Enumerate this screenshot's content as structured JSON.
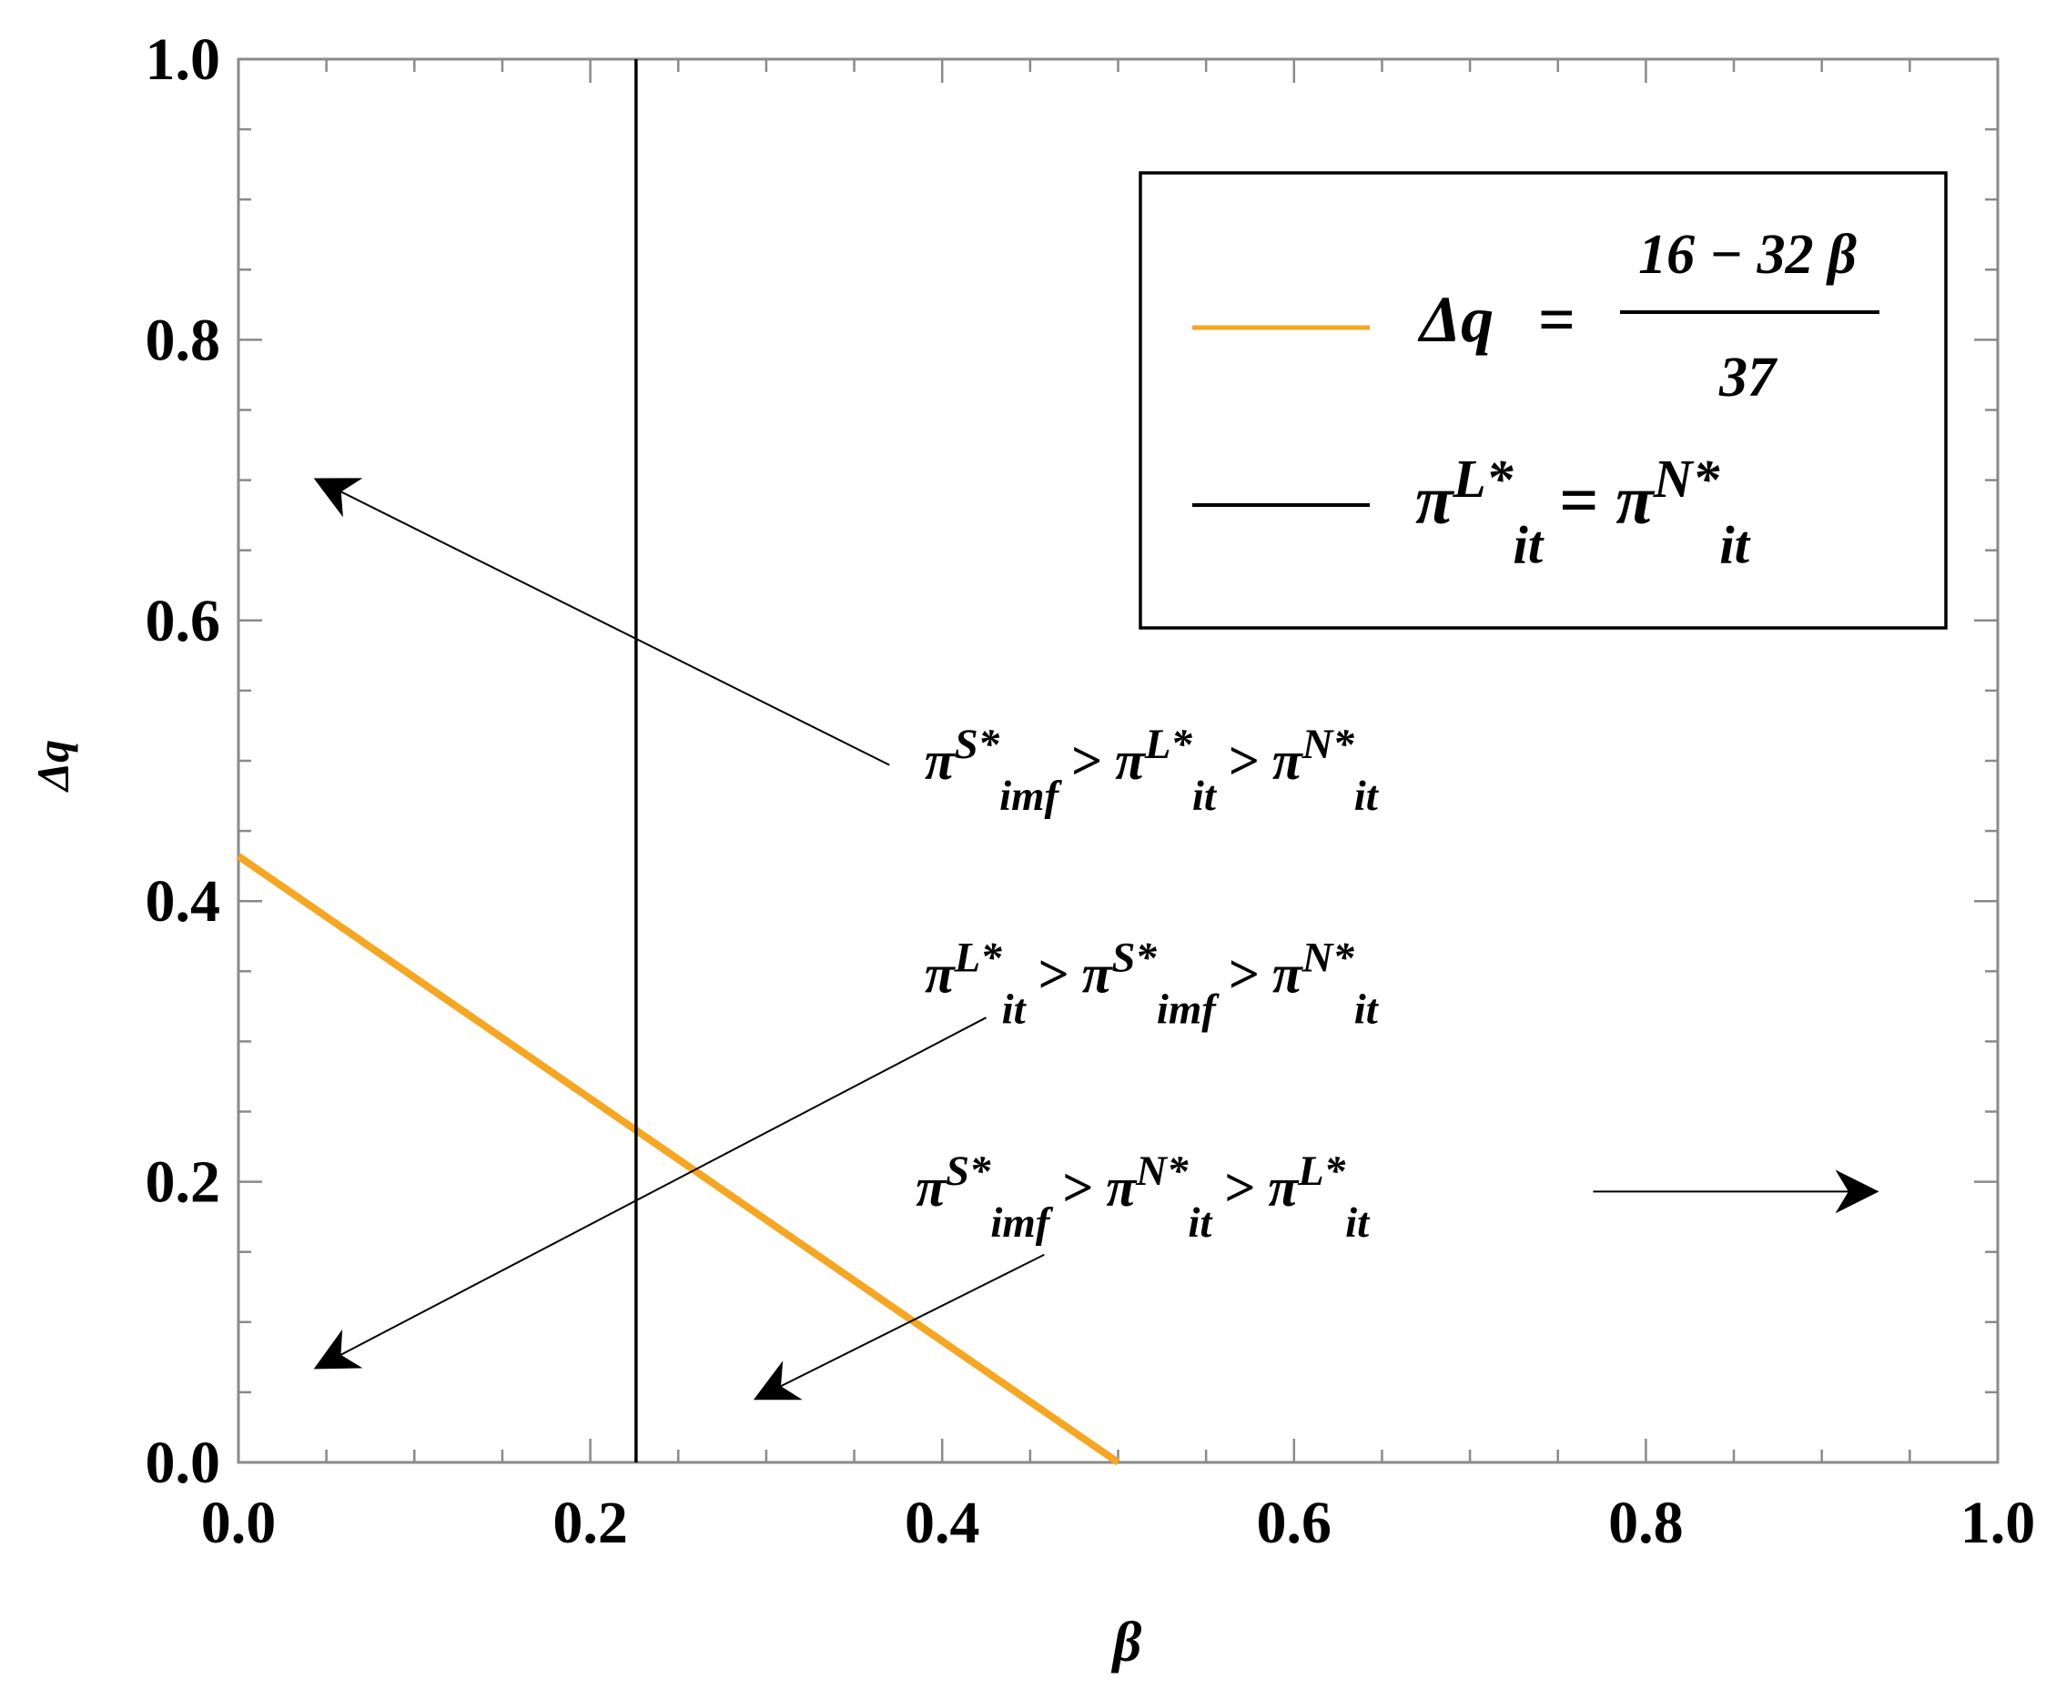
{
  "chart_data": {
    "type": "line",
    "xlabel": "β",
    "ylabel": "Δq",
    "xlim": [
      0,
      1
    ],
    "ylim": [
      0,
      1
    ],
    "x_ticks": [
      "0.0",
      "0.2",
      "0.4",
      "0.6",
      "0.8",
      "1.0"
    ],
    "y_ticks": [
      "0.0",
      "0.2",
      "0.4",
      "0.6",
      "0.8",
      "1.0"
    ],
    "grid": false,
    "legend_position": "top-right",
    "series": [
      {
        "legend": {
          "lhs": "Δq",
          "eq": "=",
          "numerator": "16 − 32 β",
          "denominator": "37"
        },
        "color": "#f5a623",
        "x": [
          0,
          0.5
        ],
        "y": [
          0.432,
          0.0
        ]
      },
      {
        "legend": {
          "base1": "π",
          "sup1": "L*",
          "sub1": "it",
          "eq": "=",
          "base2": "π",
          "sup2": "N*",
          "sub2": "it"
        },
        "color": "#000000",
        "x": [
          0.226,
          0.226
        ],
        "y": [
          0,
          1
        ]
      }
    ],
    "annotations": [
      {
        "terms": [
          {
            "base": "π",
            "sup": "S*",
            "sub": "imf"
          },
          {
            "base": "π",
            "sup": "L*",
            "sub": "it"
          },
          {
            "base": "π",
            "sup": "N*",
            "sub": "it"
          }
        ],
        "sep": ">",
        "text_at": [
          0.39,
          0.487
        ],
        "arrow_from": [
          0.37,
          0.497
        ],
        "arrow_to": [
          0.045,
          0.7
        ]
      },
      {
        "terms": [
          {
            "base": "π",
            "sup": "L*",
            "sub": "it"
          },
          {
            "base": "π",
            "sup": "S*",
            "sub": "imf"
          },
          {
            "base": "π",
            "sup": "N*",
            "sub": "it"
          }
        ],
        "sep": ">",
        "text_at": [
          0.39,
          0.335
        ],
        "arrow_from": [
          0.425,
          0.317
        ],
        "arrow_to": [
          0.045,
          0.068
        ]
      },
      {
        "terms": [
          {
            "base": "π",
            "sup": "S*",
            "sub": "imf"
          },
          {
            "base": "π",
            "sup": "N*",
            "sub": "it"
          },
          {
            "base": "π",
            "sup": "L*",
            "sub": "it"
          }
        ],
        "sep": ">",
        "text_at": [
          0.385,
          0.183
        ],
        "arrow_from": [
          0.458,
          0.148
        ],
        "arrow_to": [
          0.295,
          0.046
        ],
        "arrow2_from": [
          0.77,
          0.193
        ],
        "arrow2_to": [
          0.93,
          0.193
        ]
      }
    ]
  }
}
